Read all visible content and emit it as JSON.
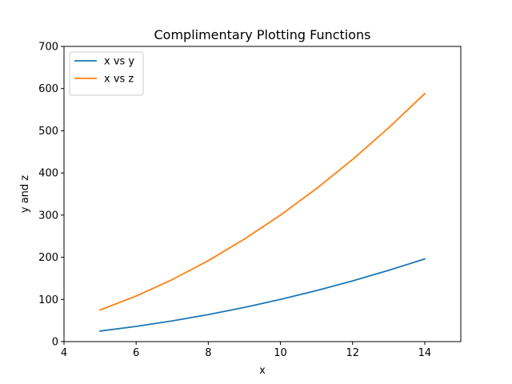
{
  "chart_data": {
    "type": "line",
    "title": "Complimentary Plotting Functions",
    "xlabel": "x",
    "ylabel": "y and z",
    "xlim": [
      4,
      15
    ],
    "ylim": [
      0,
      700
    ],
    "xticks": [
      4,
      6,
      8,
      10,
      12,
      14
    ],
    "yticks": [
      0,
      100,
      200,
      300,
      400,
      500,
      600,
      700
    ],
    "grid": false,
    "legend_position": "top-left",
    "series": [
      {
        "name": "x vs y",
        "color": "#1f77b4",
        "x": [
          5,
          6,
          7,
          8,
          9,
          10,
          11,
          12,
          13,
          14
        ],
        "y": [
          25,
          36,
          49,
          64,
          81,
          100,
          121,
          144,
          169,
          196
        ]
      },
      {
        "name": "x vs z",
        "color": "#ff7f0e",
        "x": [
          5,
          6,
          7,
          8,
          9,
          10,
          11,
          12,
          13,
          14
        ],
        "y": [
          75,
          108,
          147,
          192,
          243,
          300,
          363,
          432,
          507,
          588
        ]
      }
    ]
  }
}
